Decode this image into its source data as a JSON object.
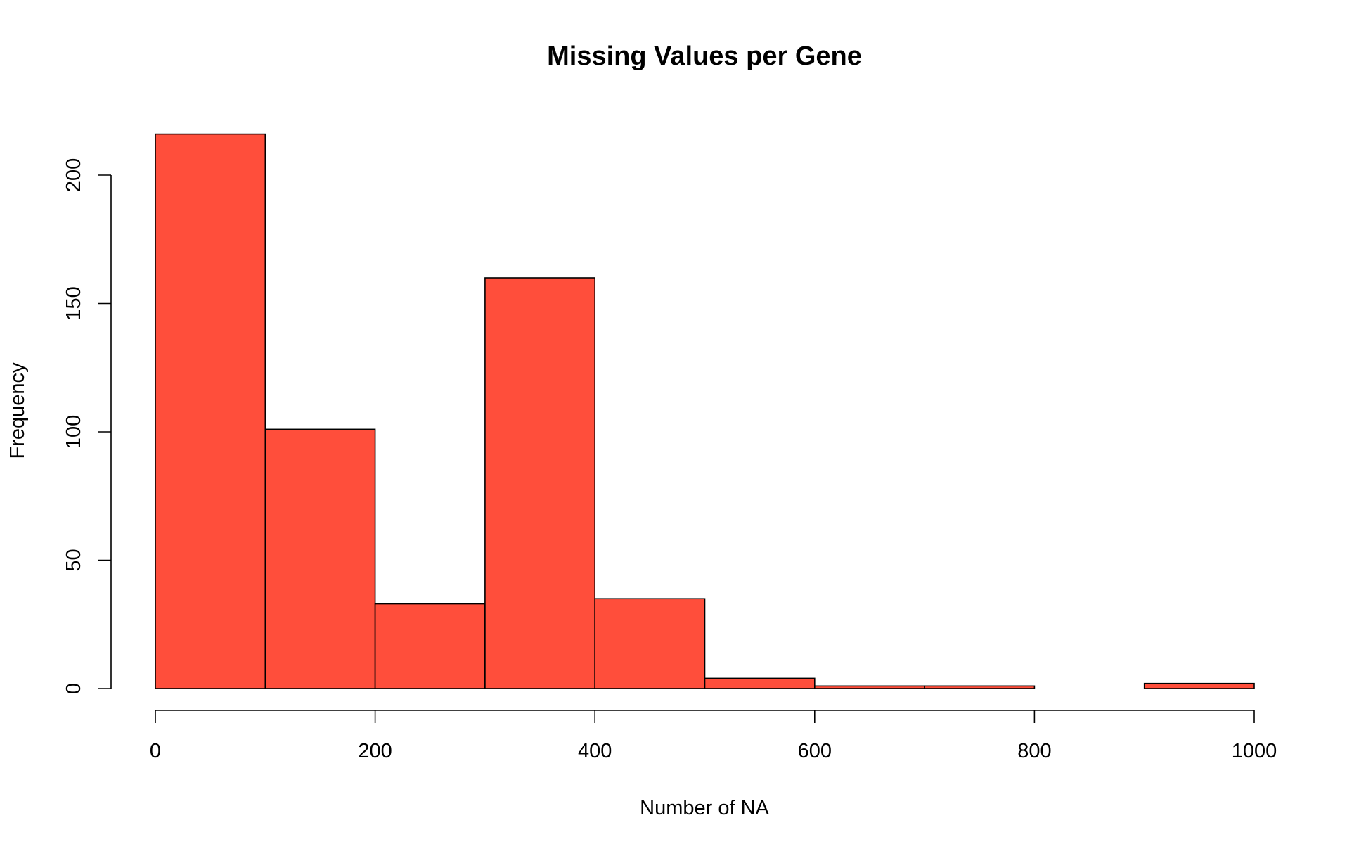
{
  "chart_data": {
    "type": "bar",
    "title": "Missing Values per Gene",
    "xlabel": "Number of NA",
    "ylabel": "Frequency",
    "bin_edges": [
      0,
      100,
      200,
      300,
      400,
      500,
      600,
      700,
      800,
      900,
      1000
    ],
    "values": [
      216,
      101,
      33,
      160,
      35,
      4,
      1,
      1,
      0,
      2
    ],
    "xlim": [
      0,
      1000
    ],
    "ylim": [
      0,
      216
    ],
    "x_ticks": [
      0,
      200,
      400,
      600,
      800,
      1000
    ],
    "y_ticks": [
      0,
      50,
      100,
      150,
      200
    ],
    "x_tick_labels": [
      "0",
      "200",
      "400",
      "600",
      "800",
      "1000"
    ],
    "y_tick_labels": [
      "0",
      "50",
      "100",
      "150",
      "200"
    ],
    "bar_color": "#FF4E3B",
    "edge_color": "#000000",
    "grid": false,
    "legend": "none"
  }
}
